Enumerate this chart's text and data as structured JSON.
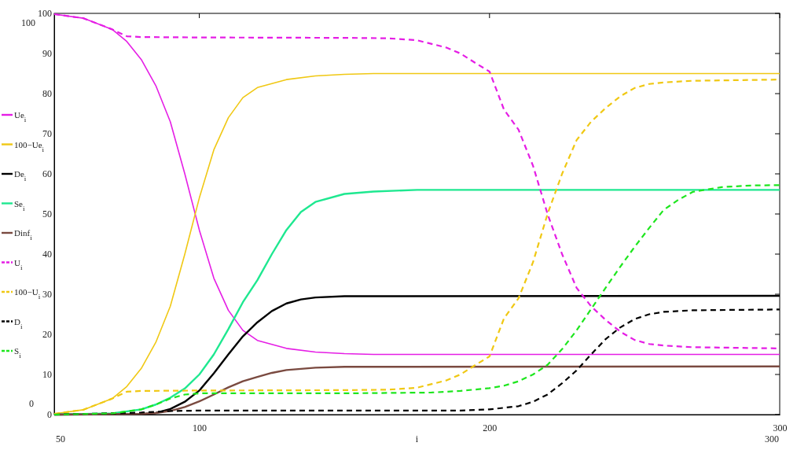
{
  "chart_data": {
    "type": "line",
    "xlabel": "i",
    "xlim": [
      50,
      300
    ],
    "ylim": [
      0,
      100
    ],
    "xticks": [
      100,
      200,
      300
    ],
    "yticks": [
      0,
      10,
      20,
      30,
      40,
      50,
      60,
      70,
      80,
      90,
      100
    ],
    "legend": "left",
    "grid": false,
    "annotations": [
      "50",
      "300",
      "100",
      "0"
    ],
    "series": [
      {
        "name": "Ue$_{i}$",
        "color": "#e51ee5",
        "line_style": "solid",
        "x": [
          50,
          60,
          70,
          75,
          80,
          85,
          90,
          95,
          100,
          105,
          110,
          115,
          120,
          130,
          140,
          150,
          160,
          300
        ],
        "values": [
          99.8,
          98.8,
          96,
          93,
          88.5,
          82,
          73,
          60,
          46,
          34,
          26,
          21,
          18.5,
          16.5,
          15.6,
          15.2,
          15,
          15
        ]
      },
      {
        "name": "100−Ue$_{i}$",
        "color": "#f0c814",
        "line_style": "solid",
        "x": [
          50,
          60,
          70,
          75,
          80,
          85,
          90,
          95,
          100,
          105,
          110,
          115,
          120,
          130,
          140,
          150,
          160,
          300
        ],
        "values": [
          0.2,
          1.2,
          4,
          7,
          11.5,
          18,
          27,
          40,
          54,
          66,
          74,
          79,
          81.5,
          83.5,
          84.4,
          84.8,
          85,
          85
        ]
      },
      {
        "name": "De$_{i}$",
        "color": "#000000",
        "line_style": "solid",
        "x": [
          50,
          80,
          85,
          90,
          95,
          100,
          105,
          110,
          115,
          120,
          125,
          130,
          135,
          140,
          150,
          300
        ],
        "values": [
          0,
          0.1,
          0.4,
          1.4,
          3.2,
          6,
          10.3,
          15,
          19.5,
          23,
          25.8,
          27.7,
          28.7,
          29.2,
          29.5,
          29.6
        ]
      },
      {
        "name": "Se$_{i}$",
        "color": "#1ee890",
        "line_style": "solid",
        "x": [
          50,
          70,
          80,
          85,
          90,
          95,
          100,
          105,
          110,
          115,
          120,
          125,
          130,
          135,
          140,
          150,
          160,
          175,
          300
        ],
        "values": [
          0,
          0.3,
          1.3,
          2.5,
          4.2,
          6.5,
          10,
          15,
          21.3,
          28,
          33.5,
          40,
          46,
          50.5,
          53,
          55,
          55.6,
          56,
          56
        ]
      },
      {
        "name": "Dinf$_{i}$",
        "color": "#7a4a40",
        "line_style": "solid",
        "x": [
          50,
          80,
          85,
          90,
          95,
          100,
          105,
          110,
          115,
          120,
          125,
          130,
          140,
          150,
          300
        ],
        "values": [
          0,
          0.2,
          0.4,
          0.9,
          1.9,
          3.3,
          5,
          6.8,
          8.3,
          9.4,
          10.4,
          11.1,
          11.7,
          11.9,
          12
        ]
      },
      {
        "name": "U$_{i}$",
        "color": "#e51ee5",
        "line_style": "dashed",
        "x": [
          50,
          60,
          70,
          75,
          80,
          100,
          150,
          165,
          175,
          185,
          190,
          195,
          200,
          205,
          210,
          215,
          220,
          225,
          230,
          235,
          240,
          245,
          250,
          255,
          260,
          270,
          300
        ],
        "values": [
          99.8,
          98.8,
          96,
          94.3,
          94.1,
          94,
          93.9,
          93.8,
          93.3,
          91.5,
          90,
          87.7,
          85.5,
          76,
          71,
          62,
          50,
          40,
          31.6,
          27,
          23.6,
          20.7,
          18.6,
          17.6,
          17.2,
          16.8,
          16.5
        ]
      },
      {
        "name": "100−U$_{i}$",
        "color": "#f0c814",
        "line_style": "dashed",
        "x": [
          50,
          60,
          70,
          75,
          80,
          100,
          150,
          165,
          175,
          185,
          190,
          195,
          200,
          205,
          210,
          215,
          220,
          225,
          230,
          235,
          240,
          245,
          250,
          255,
          260,
          270,
          300
        ],
        "values": [
          0.2,
          1.2,
          4,
          5.7,
          5.9,
          6,
          6.1,
          6.2,
          6.7,
          8.5,
          10,
          12.3,
          14.5,
          24,
          29,
          38,
          50,
          60,
          68.4,
          73,
          76.4,
          79.3,
          81.4,
          82.4,
          82.8,
          83.2,
          83.5
        ]
      },
      {
        "name": "D$_{i}$",
        "color": "#000000",
        "line_style": "dashed",
        "x": [
          50,
          80,
          90,
          100,
          190,
          200,
          205,
          210,
          215,
          220,
          225,
          230,
          235,
          240,
          245,
          250,
          255,
          260,
          270,
          300
        ],
        "values": [
          0,
          0.5,
          0.9,
          1,
          1,
          1.3,
          1.7,
          2.1,
          3.2,
          5,
          7.8,
          11,
          15,
          18.8,
          21.7,
          23.8,
          25,
          25.6,
          26,
          26.2
        ]
      },
      {
        "name": "S$_{i}$",
        "color": "#1ee61e",
        "line_style": "dashed",
        "x": [
          50,
          70,
          80,
          85,
          90,
          95,
          100,
          150,
          180,
          190,
          200,
          205,
          210,
          215,
          220,
          225,
          230,
          235,
          240,
          245,
          250,
          255,
          260,
          265,
          270,
          280,
          290,
          300
        ],
        "values": [
          0,
          0.3,
          1.3,
          2.5,
          4,
          5,
          5.3,
          5.3,
          5.5,
          5.9,
          6.6,
          7.2,
          8.3,
          10,
          12.4,
          16.3,
          21,
          26.3,
          31.6,
          36.8,
          41.8,
          46.5,
          51,
          53.5,
          55.5,
          56.7,
          57.1,
          57.2
        ]
      }
    ]
  }
}
